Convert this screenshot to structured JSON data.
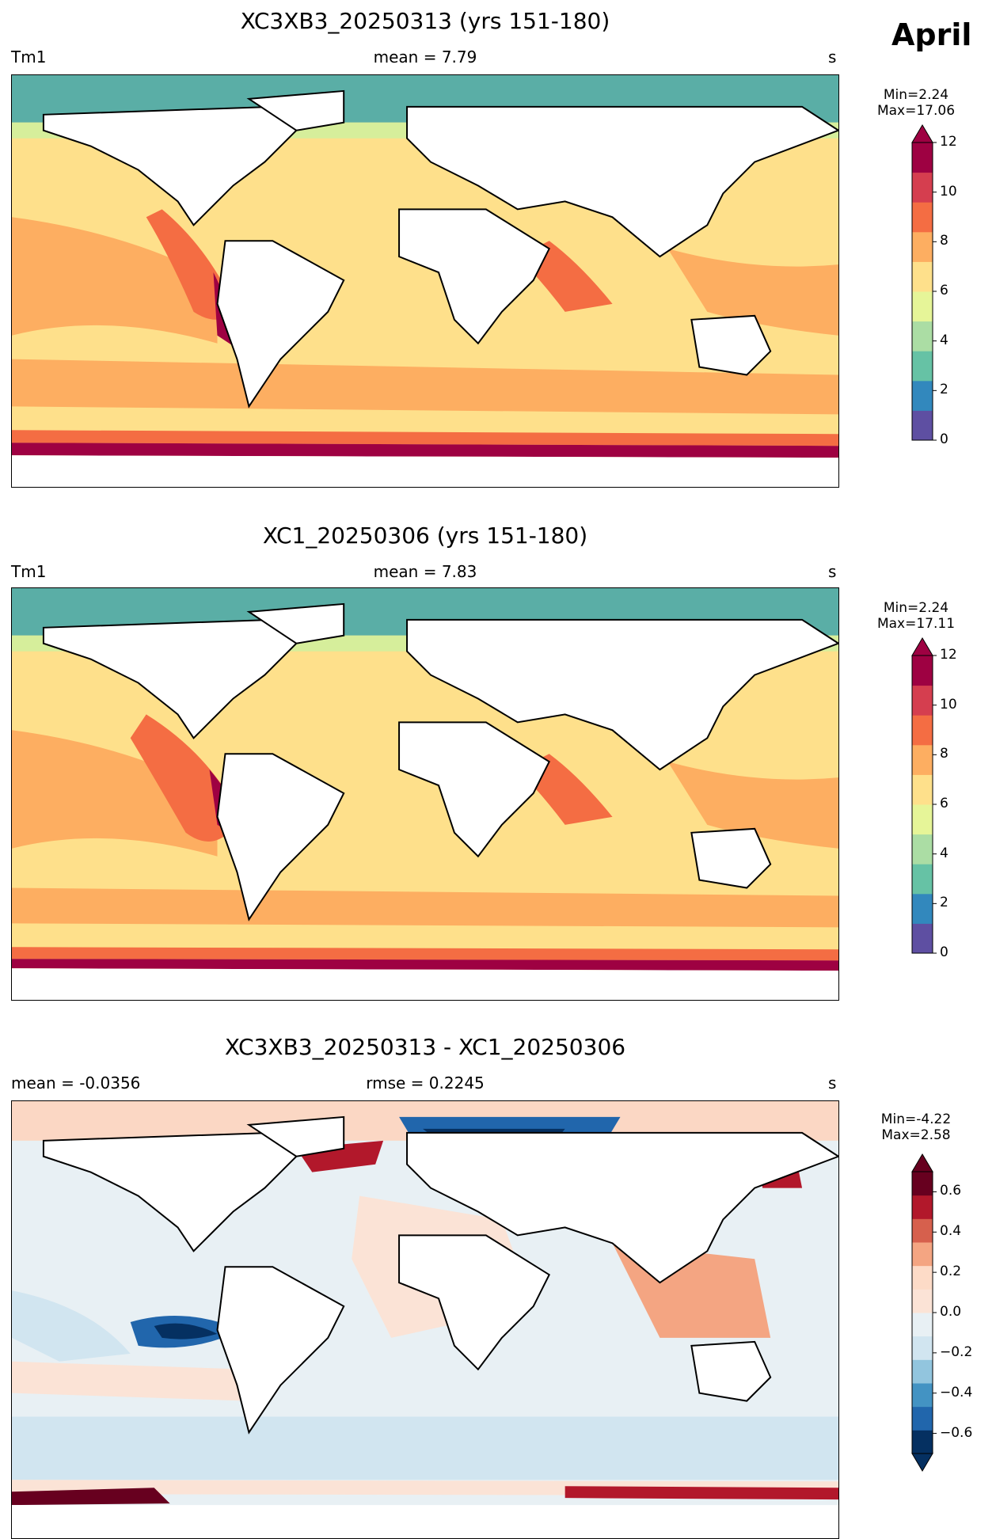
{
  "month": "April",
  "panels": [
    {
      "title": "XC3XB3_20250313 (yrs 151-180)",
      "left_label": "Tm1",
      "center_label": "mean = 7.79",
      "right_label": "s",
      "min_label": "Min=2.24",
      "max_label": "Max=17.06"
    },
    {
      "title": "XC1_20250306 (yrs 151-180)",
      "left_label": "Tm1",
      "center_label": "mean = 7.83",
      "right_label": "s",
      "min_label": "Min=2.24",
      "max_label": "Max=17.11"
    },
    {
      "title": "XC3XB3_20250313 - XC1_20250306",
      "left_label": "mean = -0.0356",
      "center_label": "rmse = 0.2245",
      "right_label": "s",
      "min_label": "Min=-4.22",
      "max_label": "Max=2.58"
    }
  ],
  "colorbars": {
    "field": {
      "ticks": [
        "0",
        "2",
        "4",
        "6",
        "8",
        "10",
        "12"
      ],
      "colors": [
        "#5e4fa2",
        "#3288bd",
        "#66c2a5",
        "#abdda4",
        "#e6f598",
        "#fee08b",
        "#fdae61",
        "#f46d43",
        "#d53e4f",
        "#9e0142"
      ],
      "extend_over": "#9e0142"
    },
    "diff": {
      "ticks": [
        "0.6",
        "0.4",
        "0.2",
        "0.0",
        "−0.2",
        "−0.4",
        "−0.6"
      ],
      "colors": [
        "#053061",
        "#2166ac",
        "#4393c3",
        "#92c5de",
        "#d1e5f0",
        "#e8f0f4",
        "#fbe3d6",
        "#fddbc7",
        "#f4a582",
        "#d6604d",
        "#b2182b",
        "#67001f"
      ]
    }
  },
  "chart_data": [
    {
      "type": "heatmap",
      "title": "XC3XB3_20250313 (yrs 151-180)",
      "variable": "Tm1",
      "units": "s",
      "mean": 7.79,
      "min": 2.24,
      "max": 17.06,
      "colorbar_range": [
        0,
        12
      ],
      "colorbar_extend": "max",
      "colorbar_ticks": [
        0,
        2,
        4,
        6,
        8,
        10,
        12
      ]
    },
    {
      "type": "heatmap",
      "title": "XC1_20250306 (yrs 151-180)",
      "variable": "Tm1",
      "units": "s",
      "mean": 7.83,
      "min": 2.24,
      "max": 17.11,
      "colorbar_range": [
        0,
        12
      ],
      "colorbar_extend": "max",
      "colorbar_ticks": [
        0,
        2,
        4,
        6,
        8,
        10,
        12
      ]
    },
    {
      "type": "heatmap",
      "title": "XC3XB3_20250313 - XC1_20250306",
      "units": "s",
      "mean": -0.0356,
      "rmse": 0.2245,
      "min": -4.22,
      "max": 2.58,
      "colorbar_range": [
        -0.7,
        0.7
      ],
      "colorbar_extend": "both",
      "colorbar_ticks": [
        -0.6,
        -0.4,
        -0.2,
        0.0,
        0.2,
        0.4,
        0.6
      ]
    }
  ]
}
